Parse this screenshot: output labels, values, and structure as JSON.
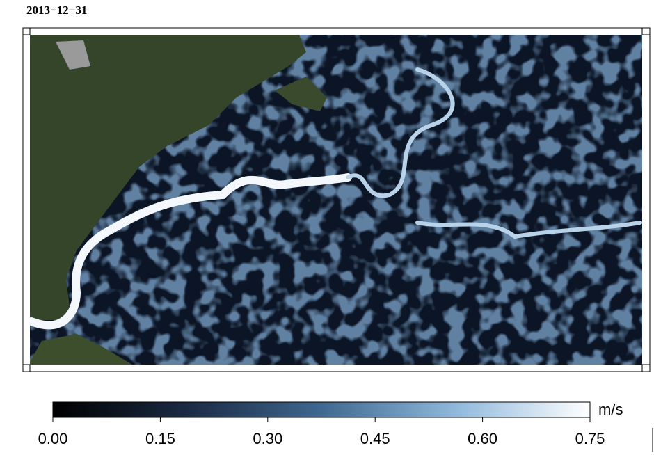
{
  "map": {
    "title": "2013−12−31",
    "colorbar": {
      "lim": [
        0,
        0.75
      ],
      "ticks": [
        {
          "value": 0,
          "label": "0.00"
        },
        {
          "value": 0.15,
          "label": "0.15"
        },
        {
          "value": 0.3,
          "label": "0.30"
        },
        {
          "value": 0.45,
          "label": "0.45"
        },
        {
          "value": 0.6,
          "label": "0.60"
        },
        {
          "value": 0.75,
          "label": "0.75"
        }
      ],
      "unit": "m/s",
      "colors": [
        "#000000",
        "#1b2a44",
        "#3f6890",
        "#8fb8dc",
        "#ffffff"
      ]
    }
  }
}
